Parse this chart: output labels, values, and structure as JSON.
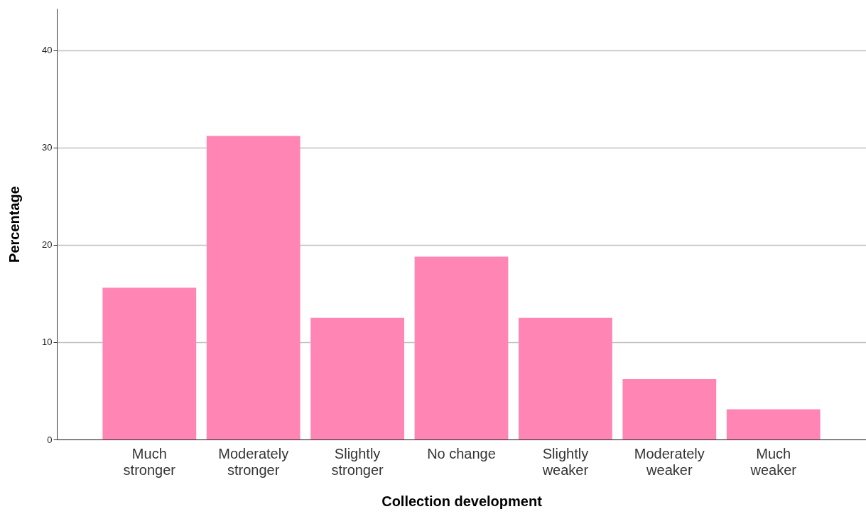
{
  "chart_data": {
    "type": "bar",
    "xlabel": "Collection development",
    "ylabel": "Percentage",
    "categories": [
      "Much stronger",
      "Moderately stronger",
      "Slightly stronger",
      "No change",
      "Slightly weaker",
      "Moderately weaker",
      "Much weaker"
    ],
    "values": [
      15.6,
      31.2,
      12.5,
      18.8,
      12.5,
      6.2,
      3.1
    ],
    "color": "#ff85b4",
    "ylim": [
      0,
      44.3
    ],
    "yticks": [
      0,
      10,
      20,
      30,
      40
    ],
    "grid": "y"
  }
}
